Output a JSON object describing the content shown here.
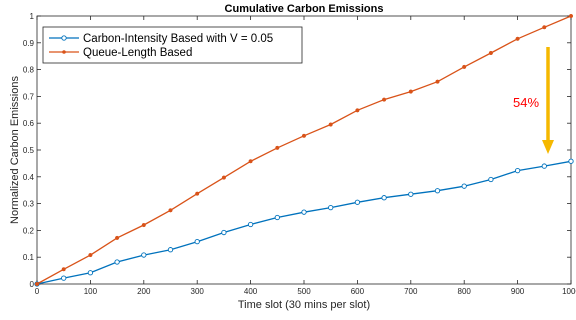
{
  "chart_data": {
    "type": "line",
    "title": "Cumulative Carbon Emissions",
    "xlabel": "Time slot (30 mins per slot)",
    "ylabel": "Normalized Carbon Emissions",
    "xlim": [
      0,
      1000
    ],
    "ylim": [
      0,
      1
    ],
    "xticks": [
      0,
      100,
      200,
      300,
      400,
      500,
      600,
      700,
      800,
      900,
      1000
    ],
    "xtick_labels": [
      "0",
      "100",
      "200",
      "300",
      "400",
      "500",
      "600",
      "700",
      "800",
      "900",
      "1000"
    ],
    "yticks": [
      0,
      0.1,
      0.2,
      0.3,
      0.4,
      0.5,
      0.6,
      0.7,
      0.8,
      0.9,
      1
    ],
    "ytick_labels": [
      "0",
      "0.1",
      "0.2",
      "0.3",
      "0.4",
      "0.5",
      "0.6",
      "0.7",
      "0.8",
      "0.9",
      "1"
    ],
    "grid": false,
    "legend_position": "top-left",
    "series": [
      {
        "name": "Carbon-Intensity Based with V = 0.05",
        "color": "#0072BD",
        "marker": "circle-open",
        "x": [
          0,
          50,
          100,
          150,
          200,
          250,
          300,
          350,
          400,
          450,
          500,
          550,
          600,
          650,
          700,
          750,
          800,
          850,
          900,
          950,
          1000
        ],
        "y": [
          0,
          0.022,
          0.042,
          0.082,
          0.108,
          0.128,
          0.158,
          0.192,
          0.222,
          0.248,
          0.268,
          0.285,
          0.305,
          0.322,
          0.335,
          0.348,
          0.365,
          0.39,
          0.423,
          0.44,
          0.458
        ]
      },
      {
        "name": "Queue-Length Based",
        "color": "#D95319",
        "marker": "dot",
        "x": [
          0,
          50,
          100,
          150,
          200,
          250,
          300,
          350,
          400,
          450,
          500,
          550,
          600,
          650,
          700,
          750,
          800,
          850,
          900,
          950,
          1000
        ],
        "y": [
          0,
          0.055,
          0.108,
          0.172,
          0.22,
          0.275,
          0.337,
          0.397,
          0.458,
          0.508,
          0.553,
          0.595,
          0.648,
          0.688,
          0.718,
          0.755,
          0.81,
          0.862,
          0.915,
          0.958,
          1.0
        ]
      }
    ],
    "annotations": [
      {
        "text": "54%",
        "color": "#FF0000"
      }
    ],
    "arrow_color": "#F5B800"
  }
}
